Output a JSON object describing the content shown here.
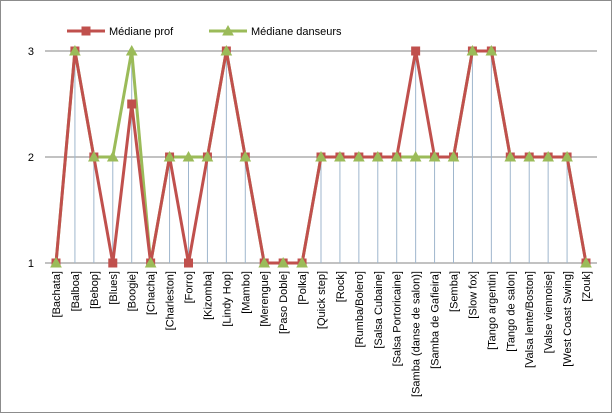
{
  "chart_data": {
    "type": "line",
    "title": "",
    "xlabel": "",
    "ylabel": "",
    "ylim": [
      1,
      3
    ],
    "yticks": [
      "1",
      "2",
      "3"
    ],
    "grid": true,
    "legend_position": "top-left",
    "categories": [
      "[Bachata]",
      "[Balboa]",
      "[Bebop]",
      "[Blues]",
      "[Boogie]",
      "[Chacha]",
      "[Charleston]",
      "[Forro]",
      "[Kizomba]",
      "[Lindy Hop]",
      "[Mambo]",
      "[Merengue]",
      "[Paso Doble]",
      "[Polka]",
      "[Quick step]",
      "[Rock]",
      "[Rumba/Bolero]",
      "[Salsa Cubaine]",
      "[Salsa Portoricaine]",
      "[Samba (danse de salon)]",
      "[Samba de Gafieira]",
      "[Semba]",
      "[Slow fox]",
      "[Tango argentin]",
      "[Tango de salon]",
      "[Valsa lente/Boston]",
      "[Valse viennoise]",
      "[West Coast Swing]",
      "[Zouk]"
    ],
    "series": [
      {
        "name": "Médiane prof",
        "color": "#c0504d",
        "values": [
          1,
          3,
          2,
          1,
          2.5,
          1,
          2,
          1,
          2,
          3,
          2,
          1,
          1,
          1,
          2,
          2,
          2,
          2,
          2,
          3,
          2,
          2,
          3,
          3,
          2,
          2,
          2,
          2,
          1
        ]
      },
      {
        "name": "Médiane danseurs",
        "color": "#9bbb59",
        "values": [
          1,
          3,
          2,
          2,
          3,
          1,
          2,
          2,
          2,
          3,
          2,
          1,
          1,
          1,
          2,
          2,
          2,
          2,
          2,
          2,
          2,
          2,
          3,
          3,
          2,
          2,
          2,
          2,
          1
        ]
      }
    ]
  },
  "colors": {
    "gridline": "#868686",
    "dropline": "#9fb6cd",
    "frame": "#8c8c8c"
  }
}
